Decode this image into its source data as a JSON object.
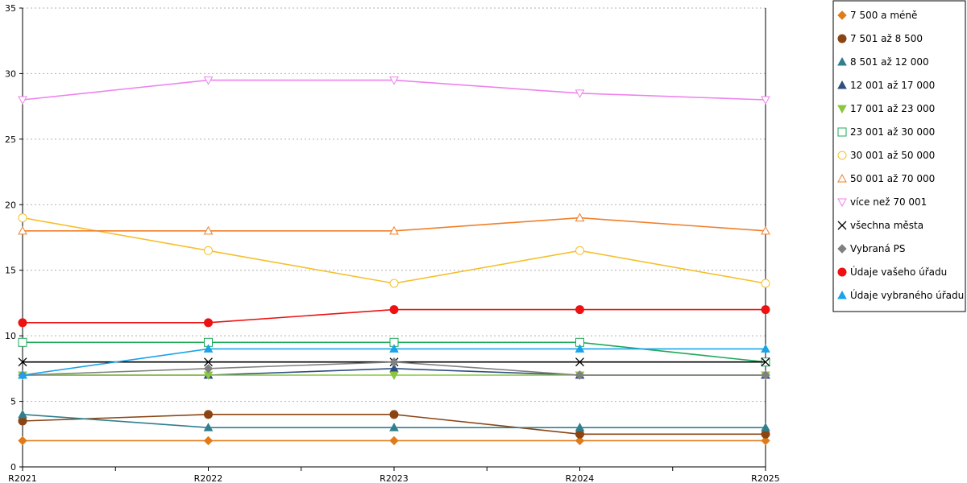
{
  "chart_data": {
    "type": "line",
    "title": "",
    "xlabel": "",
    "ylabel": "",
    "categories": [
      "R2021",
      "R2022",
      "R2023",
      "R2024",
      "R2025"
    ],
    "ylim": [
      0,
      35
    ],
    "yticks": [
      0,
      5,
      10,
      15,
      20,
      25,
      30,
      35
    ],
    "grid": true,
    "legend_position": "right",
    "series": [
      {
        "name": "7 500 a méně",
        "color": "#e07b1a",
        "marker": "diamond",
        "filled": true,
        "values": [
          2,
          2,
          2,
          2,
          2
        ]
      },
      {
        "name": "7 501 až 8 500",
        "color": "#8b4513",
        "marker": "circle",
        "filled": true,
        "values": [
          3.5,
          4,
          4,
          2.5,
          2.5
        ]
      },
      {
        "name": "8 501 až 12 000",
        "color": "#2f7f8f",
        "marker": "triangle",
        "filled": true,
        "values": [
          4,
          3,
          3,
          3,
          3
        ]
      },
      {
        "name": "12 001 až 17 000",
        "color": "#2f4f7f",
        "marker": "triangle",
        "filled": true,
        "values": [
          7,
          7,
          7.5,
          7,
          7
        ]
      },
      {
        "name": "17 001 až 23 000",
        "color": "#8cc63f",
        "marker": "triangle-down",
        "filled": true,
        "values": [
          7,
          7,
          7,
          7,
          7
        ]
      },
      {
        "name": "23 001 až 30 000",
        "color": "#1fa85a",
        "marker": "square",
        "filled": false,
        "values": [
          9.5,
          9.5,
          9.5,
          9.5,
          8
        ]
      },
      {
        "name": "30 001 až 50 000",
        "color": "#f5c02c",
        "marker": "circle",
        "filled": false,
        "values": [
          19,
          16.5,
          14,
          16.5,
          14
        ]
      },
      {
        "name": "50 001 až 70 000",
        "color": "#f07f2a",
        "marker": "triangle",
        "filled": false,
        "values": [
          18,
          18,
          18,
          19,
          18
        ]
      },
      {
        "name": "více než 70 001",
        "color": "#ee82ee",
        "marker": "triangle-down",
        "filled": false,
        "values": [
          28,
          29.5,
          29.5,
          28.5,
          28
        ]
      },
      {
        "name": "všechna města",
        "color": "#000000",
        "marker": "x",
        "filled": false,
        "values": [
          8,
          8,
          8,
          8,
          8
        ]
      },
      {
        "name": "Vybraná PS",
        "color": "#808080",
        "marker": "diamond",
        "filled": true,
        "values": [
          7,
          7.5,
          8,
          7,
          7
        ]
      },
      {
        "name": "Údaje vašeho úřadu",
        "color": "#ee1111",
        "marker": "circle",
        "filled": true,
        "values": [
          11,
          11,
          12,
          12,
          12
        ]
      },
      {
        "name": "Údaje vybraného úřadu",
        "color": "#1aa3e8",
        "marker": "triangle",
        "filled": true,
        "values": [
          7,
          9,
          9,
          9,
          9
        ]
      }
    ]
  }
}
